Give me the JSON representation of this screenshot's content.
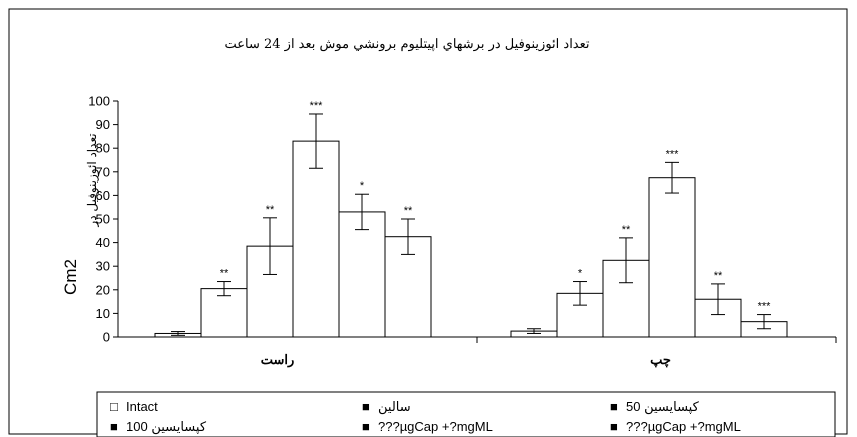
{
  "chart_data": {
    "type": "bar",
    "title": "تعداد ائوزينوفيل در برشهاي اپيتليوم برونشي موش بعد از 24 ساعت",
    "ylabel": "تعداد ائوزينوفيل در",
    "ylabel_unit": "Cm2",
    "ylim": [
      0,
      100
    ],
    "yticks": [
      0,
      10,
      20,
      30,
      40,
      50,
      60,
      70,
      80,
      90,
      100
    ],
    "groups": [
      "راست",
      "چپ"
    ],
    "series": [
      {
        "name": "Intact",
        "fill": "#ffffff",
        "values": [
          1.5,
          2.5
        ],
        "errors": [
          0.8,
          1.0
        ],
        "significance": [
          "",
          ""
        ]
      },
      {
        "name": "سالين",
        "fill": "#ffffff",
        "values": [
          20.5,
          18.5
        ],
        "errors": [
          3.0,
          5.0
        ],
        "significance": [
          "**",
          "*"
        ]
      },
      {
        "name": "كپسايسين 50",
        "fill": "#ffffff",
        "values": [
          38.5,
          32.5
        ],
        "errors": [
          12.0,
          9.5
        ],
        "significance": [
          "**",
          "**"
        ]
      },
      {
        "name": "كپسايسين 100",
        "fill": "#ffffff",
        "values": [
          83.0,
          67.5
        ],
        "errors": [
          11.5,
          6.5
        ],
        "significance": [
          "***",
          "***"
        ]
      },
      {
        "name": "???µgCap +?mgML",
        "fill": "#ffffff",
        "values": [
          53.0,
          16.0
        ],
        "errors": [
          7.5,
          6.5
        ],
        "significance": [
          "*",
          "**"
        ]
      },
      {
        "name": "???µgCap +?mgML",
        "fill": "#ffffff",
        "values": [
          42.5,
          6.5
        ],
        "errors": [
          7.5,
          3.0
        ],
        "significance": [
          "**",
          "***"
        ]
      }
    ],
    "legend": {
      "placement": "bottom",
      "markers": [
        "□",
        "■",
        "■",
        "■",
        "■",
        "■"
      ]
    },
    "grid": false
  }
}
